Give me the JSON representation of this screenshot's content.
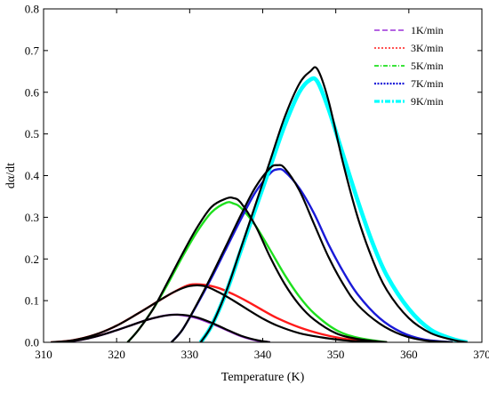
{
  "chart_data": {
    "type": "line",
    "title": "",
    "xlabel": "Temperature (K)",
    "ylabel": "dα/dt",
    "xlim": [
      310,
      370
    ],
    "ylim": [
      0.0,
      0.8
    ],
    "xticks": [
      310,
      320,
      330,
      340,
      350,
      360,
      370
    ],
    "yticks": [
      0.0,
      0.1,
      0.2,
      0.3,
      0.4,
      0.5,
      0.6,
      0.7,
      0.8
    ],
    "x_tick_labels": [
      "310",
      "320",
      "330",
      "340",
      "350",
      "360",
      "370"
    ],
    "y_tick_labels": [
      "0.0",
      "0.1",
      "0.2",
      "0.3",
      "0.4",
      "0.5",
      "0.6",
      "0.7",
      "0.8"
    ],
    "grid": false,
    "legend_position": "top-right",
    "series": [
      {
        "name": "1K/min",
        "color": "#9b30d8",
        "fit_color": "#000000",
        "x": [
          312,
          314,
          316,
          318,
          320,
          322,
          324,
          326,
          327.5,
          329,
          331,
          333,
          335,
          337,
          339,
          341
        ],
        "y": [
          0.0,
          0.003,
          0.009,
          0.018,
          0.029,
          0.041,
          0.053,
          0.062,
          0.066,
          0.065,
          0.058,
          0.045,
          0.03,
          0.015,
          0.005,
          0.0
        ],
        "fit_y": [
          0.0,
          0.003,
          0.009,
          0.018,
          0.029,
          0.041,
          0.053,
          0.062,
          0.066,
          0.066,
          0.06,
          0.047,
          0.031,
          0.016,
          0.006,
          0.0
        ]
      },
      {
        "name": "3K/min",
        "color": "#ff1a1a",
        "fit_color": "#000000",
        "x": [
          311,
          314,
          317,
          320,
          323,
          326,
          328,
          330,
          332,
          334,
          336,
          338,
          340,
          342,
          345,
          348,
          351,
          354,
          357
        ],
        "y": [
          0.0,
          0.005,
          0.018,
          0.04,
          0.07,
          0.102,
          0.122,
          0.138,
          0.138,
          0.13,
          0.115,
          0.097,
          0.077,
          0.058,
          0.036,
          0.02,
          0.009,
          0.003,
          0.0
        ],
        "fit_y": [
          0.0,
          0.005,
          0.018,
          0.04,
          0.07,
          0.102,
          0.122,
          0.135,
          0.135,
          0.12,
          0.1,
          0.078,
          0.057,
          0.04,
          0.022,
          0.012,
          0.005,
          0.002,
          0.0
        ]
      },
      {
        "name": "5K/min",
        "color": "#1ee01e",
        "fit_color": "#000000",
        "x": [
          321.5,
          323,
          325,
          327,
          329,
          331,
          333,
          335,
          336,
          337,
          339,
          341,
          343,
          345,
          347,
          350,
          353,
          357
        ],
        "y": [
          0.0,
          0.03,
          0.08,
          0.14,
          0.205,
          0.265,
          0.312,
          0.335,
          0.333,
          0.323,
          0.28,
          0.222,
          0.162,
          0.11,
          0.07,
          0.03,
          0.011,
          0.0
        ],
        "fit_y": [
          0.0,
          0.03,
          0.08,
          0.145,
          0.212,
          0.275,
          0.325,
          0.345,
          0.346,
          0.335,
          0.28,
          0.205,
          0.14,
          0.09,
          0.055,
          0.022,
          0.008,
          0.0
        ]
      },
      {
        "name": "7K/min",
        "color": "#1a1ad8",
        "fit_color": "#000000",
        "x": [
          327.5,
          329,
          331,
          333,
          335,
          337,
          339,
          341,
          342,
          343,
          345,
          347,
          349,
          351,
          353,
          356,
          359,
          362,
          366
        ],
        "y": [
          0.0,
          0.03,
          0.09,
          0.155,
          0.225,
          0.295,
          0.36,
          0.405,
          0.415,
          0.41,
          0.37,
          0.31,
          0.235,
          0.17,
          0.115,
          0.058,
          0.024,
          0.007,
          0.0
        ],
        "fit_y": [
          0.0,
          0.03,
          0.092,
          0.16,
          0.232,
          0.305,
          0.372,
          0.418,
          0.425,
          0.418,
          0.365,
          0.285,
          0.205,
          0.14,
          0.09,
          0.045,
          0.018,
          0.005,
          0.0
        ]
      },
      {
        "name": "9K/min",
        "color": "#00ffff",
        "fit_color": "#000000",
        "x": [
          331.5,
          333,
          335,
          337,
          339,
          341,
          343,
          345,
          346.5,
          347.5,
          349,
          351,
          353,
          355,
          357,
          360,
          363,
          366,
          368
        ],
        "y": [
          0.0,
          0.04,
          0.12,
          0.22,
          0.32,
          0.42,
          0.52,
          0.6,
          0.63,
          0.625,
          0.56,
          0.45,
          0.34,
          0.24,
          0.16,
          0.08,
          0.03,
          0.008,
          0.0
        ],
        "fit_y": [
          0.0,
          0.04,
          0.122,
          0.225,
          0.33,
          0.435,
          0.54,
          0.62,
          0.65,
          0.655,
          0.58,
          0.43,
          0.3,
          0.2,
          0.125,
          0.058,
          0.022,
          0.006,
          0.0
        ]
      }
    ]
  }
}
